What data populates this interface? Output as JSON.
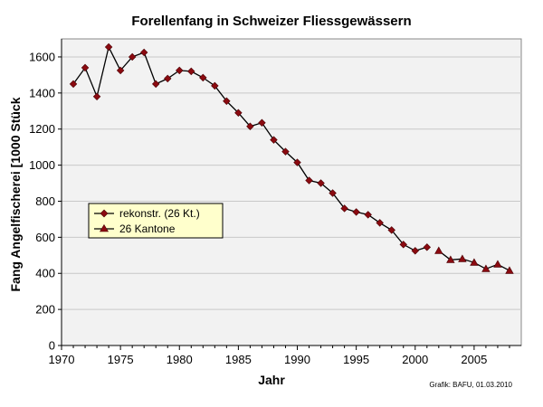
{
  "chart_data": {
    "type": "line",
    "title": "Forellenfang in Schweizer Fliessgewässern",
    "xlabel": "Jahr",
    "ylabel": "Fang Angelfischerei [1000 Stück",
    "xlim": [
      1970,
      2009
    ],
    "ylim": [
      0,
      1700
    ],
    "x_ticks": [
      1970,
      1975,
      1980,
      1985,
      1990,
      1995,
      2000,
      2005
    ],
    "y_ticks": [
      0,
      200,
      400,
      600,
      800,
      1000,
      1200,
      1400,
      1600
    ],
    "grid": {
      "horizontal": true,
      "vertical": false
    },
    "legend_position": "left-middle",
    "plot_background": "#f2f2f2",
    "series": [
      {
        "name": "rekonstr. (26 Kt.)",
        "marker": "diamond",
        "color": "#8b0a10",
        "line_color": "#000000",
        "x": [
          1971,
          1972,
          1973,
          1974,
          1975,
          1976,
          1977,
          1978,
          1979,
          1980,
          1981,
          1982,
          1983,
          1984,
          1985,
          1986,
          1987,
          1988,
          1989,
          1990,
          1991,
          1992,
          1993,
          1994,
          1995,
          1996,
          1997,
          1998,
          1999,
          2000,
          2001
        ],
        "y": [
          1450,
          1540,
          1380,
          1655,
          1525,
          1600,
          1625,
          1450,
          1480,
          1525,
          1520,
          1485,
          1440,
          1355,
          1290,
          1215,
          1235,
          1140,
          1075,
          1015,
          915,
          900,
          845,
          760,
          740,
          725,
          680,
          640,
          560,
          525,
          545
        ]
      },
      {
        "name": "26 Kantone",
        "marker": "triangle",
        "color": "#8b0a10",
        "line_color": "#000000",
        "x": [
          2002,
          2003,
          2004,
          2005,
          2006,
          2007,
          2008
        ],
        "y": [
          525,
          475,
          480,
          460,
          425,
          450,
          415
        ]
      }
    ],
    "annotation": "Grafik: BAFU, 01.03.2010"
  }
}
